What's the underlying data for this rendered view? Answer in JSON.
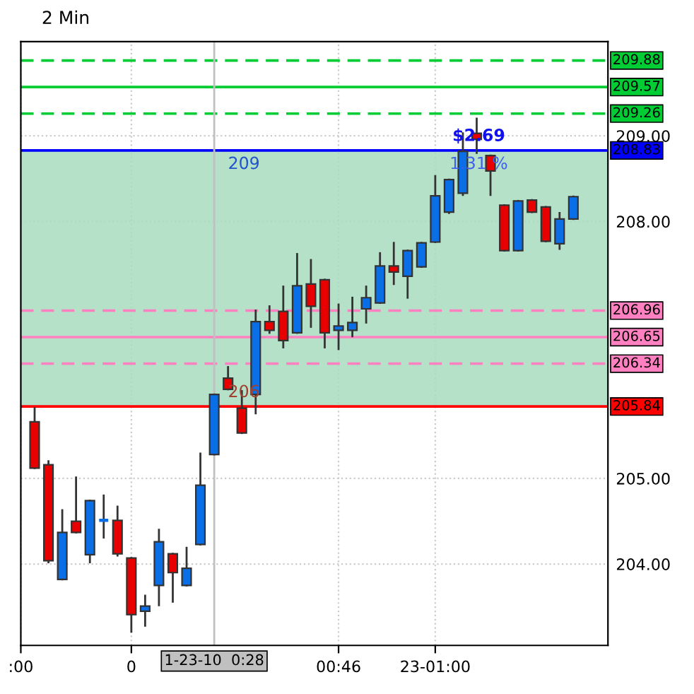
{
  "chart_data": {
    "type": "candlestick",
    "title": "2 Min",
    "x": [
      0.0333,
      0.0667,
      0.1,
      0.1333,
      0.1667,
      0.2,
      0.2333,
      0.2667,
      0.3,
      0.3333,
      0.3667,
      0.4,
      0.4333,
      0.4667,
      0.5,
      0.5333,
      0.5667,
      0.6,
      0.6333,
      0.6667,
      0.7,
      0.7333,
      0.7667,
      0.8,
      0.8333,
      0.8667,
      0.9,
      0.9333,
      0.9667,
      1.0,
      1.0333,
      1.0667,
      1.1,
      1.1333,
      1.1667,
      1.2,
      1.2333,
      1.2667,
      1.3,
      1.3333
    ],
    "ohlc": [
      [
        205.66,
        205.82,
        205.12,
        205.12
      ],
      [
        205.16,
        205.2,
        204.02,
        204.04
      ],
      [
        203.82,
        204.63,
        203.82,
        204.37
      ],
      [
        204.5,
        205.01,
        204.37,
        204.37
      ],
      [
        204.11,
        204.74,
        204.02,
        204.74
      ],
      [
        204.51,
        204.8,
        204.31,
        204.51
      ],
      [
        204.51,
        204.67,
        204.1,
        204.12
      ],
      [
        204.07,
        204.07,
        203.21,
        203.41
      ],
      [
        203.45,
        203.63,
        203.28,
        203.51
      ],
      [
        203.75,
        204.4,
        203.52,
        204.26
      ],
      [
        204.12,
        204.12,
        203.56,
        203.9
      ],
      [
        203.75,
        204.19,
        203.75,
        203.95
      ],
      [
        204.23,
        205.29,
        204.23,
        204.92
      ],
      [
        205.28,
        205.98,
        205.28,
        205.98
      ],
      [
        206.17,
        206.3,
        206.04,
        206.04
      ],
      [
        205.82,
        206.02,
        205.53,
        205.53
      ],
      [
        205.98,
        206.96,
        205.76,
        206.83
      ],
      [
        206.83,
        207.01,
        206.7,
        206.73
      ],
      [
        206.95,
        207.24,
        206.53,
        206.61
      ],
      [
        206.7,
        207.62,
        206.7,
        207.25
      ],
      [
        207.27,
        207.55,
        206.77,
        207.01
      ],
      [
        207.32,
        207.32,
        206.53,
        206.7
      ],
      [
        206.73,
        207.03,
        206.51,
        206.78
      ],
      [
        206.73,
        207.11,
        206.66,
        206.82
      ],
      [
        206.98,
        207.24,
        206.82,
        207.11
      ],
      [
        207.05,
        207.63,
        207.05,
        207.48
      ],
      [
        207.48,
        207.75,
        207.27,
        207.41
      ],
      [
        207.36,
        207.66,
        207.11,
        207.66
      ],
      [
        207.47,
        207.75,
        207.47,
        207.75
      ],
      [
        207.76,
        208.53,
        207.76,
        208.3
      ],
      [
        208.11,
        208.49,
        208.1,
        208.49
      ],
      [
        208.33,
        209.03,
        208.31,
        208.82
      ],
      [
        209.03,
        209.2,
        208.8,
        208.96
      ],
      [
        208.77,
        208.77,
        208.31,
        208.59
      ],
      [
        208.19,
        208.19,
        207.66,
        207.66
      ],
      [
        207.66,
        208.24,
        207.66,
        208.24
      ],
      [
        208.25,
        208.25,
        208.11,
        208.11
      ],
      [
        208.17,
        208.17,
        207.77,
        207.77
      ],
      [
        207.74,
        208.1,
        207.68,
        208.03
      ],
      [
        208.03,
        208.29,
        208.03,
        208.29
      ]
    ],
    "colors": [
      "#e80000",
      "#e80000",
      "#0a6ee6",
      "#e80000",
      "#0a6ee6",
      "#0a6ee6",
      "#e80000",
      "#e80000",
      "#0a6ee6",
      "#0a6ee6",
      "#e80000",
      "#0a6ee6",
      "#0a6ee6",
      "#0a6ee6",
      "#e80000",
      "#e80000",
      "#0a6ee6",
      "#e80000",
      "#e80000",
      "#0a6ee6",
      "#e80000",
      "#e80000",
      "#0a6ee6",
      "#0a6ee6",
      "#0a6ee6",
      "#0a6ee6",
      "#e80000",
      "#0a6ee6",
      "#0a6ee6",
      "#0a6ee6",
      "#0a6ee6",
      "#0a6ee6",
      "#e80000",
      "#e80000",
      "#e80000",
      "#0a6ee6",
      "#e80000",
      "#e80000",
      "#0a6ee6",
      "#0a6ee6"
    ],
    "xlim": [
      0.0,
      1.4167
    ],
    "xticks": [
      {
        "value": 0.0,
        "label": ":00"
      },
      {
        "value": 0.2667,
        "label": "0"
      },
      {
        "value": 0.7667,
        "label": "00:46"
      },
      {
        "value": 1.0,
        "label": "23-01:00"
      }
    ],
    "ylim": [
      203.05,
      210.1
    ],
    "yticks": [
      {
        "value": 204,
        "label": "204.00"
      },
      {
        "value": 205,
        "label": "205.00"
      },
      {
        "value": 208,
        "label": "208.00"
      },
      {
        "value": 209,
        "label": "209.00"
      }
    ],
    "grid": true,
    "ref_lines": [
      {
        "axis": "y",
        "value": 209.88,
        "label": "209.88",
        "color": "#00cc33",
        "line_style": "dashed"
      },
      {
        "axis": "y",
        "value": 209.57,
        "label": "209.57",
        "color": "#00cc33",
        "line_style": "solid"
      },
      {
        "axis": "y",
        "value": 209.26,
        "label": "209.26",
        "color": "#00cc33",
        "line_style": "dashed"
      },
      {
        "axis": "y",
        "value": 208.83,
        "label": "208.83",
        "color": "#0000ff",
        "line_style": "solid"
      },
      {
        "axis": "y",
        "value": 206.96,
        "label": "206.96",
        "color": "#ff80c0",
        "line_style": "dashed"
      },
      {
        "axis": "y",
        "value": 206.65,
        "label": "206.65",
        "color": "#ff80c0",
        "line_style": "solid"
      },
      {
        "axis": "y",
        "value": 206.34,
        "label": "206.34",
        "color": "#ff80c0",
        "line_style": "dashed"
      },
      {
        "axis": "y",
        "value": 205.84,
        "label": "205.84",
        "color": "#ff0000",
        "line_style": "solid"
      },
      {
        "axis": "x",
        "value": 0.4667,
        "label": "1-23-10  0:28",
        "color": "#c0c0c0",
        "line_style": "solid"
      }
    ],
    "bands": [
      {
        "axis": "y",
        "from": 205.84,
        "to": 208.83,
        "color": "#a8dcc0"
      }
    ],
    "annotations": [
      "209",
      "206",
      "$2.69",
      "1.31 %"
    ]
  }
}
